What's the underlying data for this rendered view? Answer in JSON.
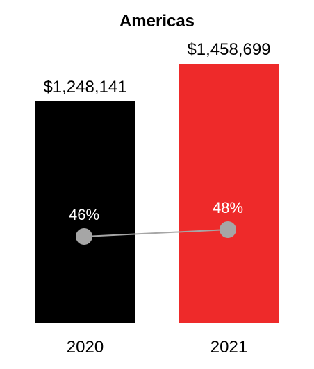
{
  "chart_data": {
    "type": "bar",
    "title": "Americas",
    "categories": [
      "2020",
      "2021"
    ],
    "series": [
      {
        "values": [
          1248141,
          1458699
        ],
        "value_labels": [
          "$1,248,141",
          "$1,458,699"
        ],
        "colors": [
          "#000000",
          "#ee2a2a"
        ]
      },
      {
        "type": "line",
        "values": [
          46,
          48
        ],
        "value_labels": [
          "46%",
          "48%"
        ],
        "color": "#a6a6a6"
      }
    ],
    "ylim": [
      0,
      1458699
    ],
    "grid": false
  }
}
